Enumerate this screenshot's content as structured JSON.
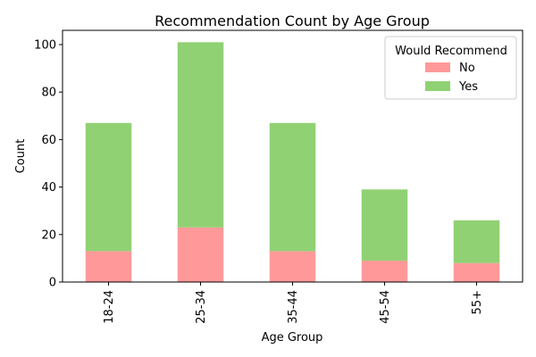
{
  "chart_data": {
    "type": "bar",
    "stacked": true,
    "title": "Recommendation Count by Age Group",
    "xlabel": "Age Group",
    "ylabel": "Count",
    "categories": [
      "18-24",
      "25-34",
      "35-44",
      "45-54",
      "55+"
    ],
    "series": [
      {
        "name": "No",
        "color": "#ff9999",
        "values": [
          13,
          23,
          13,
          9,
          8
        ]
      },
      {
        "name": "Yes",
        "color": "#90d174",
        "values": [
          54,
          78,
          54,
          30,
          18
        ]
      }
    ],
    "ylim": [
      0,
      106
    ],
    "yticks": [
      0,
      20,
      40,
      60,
      80,
      100
    ],
    "legend": {
      "title": "Would Recommend",
      "position": "top-right"
    },
    "grid": false
  }
}
